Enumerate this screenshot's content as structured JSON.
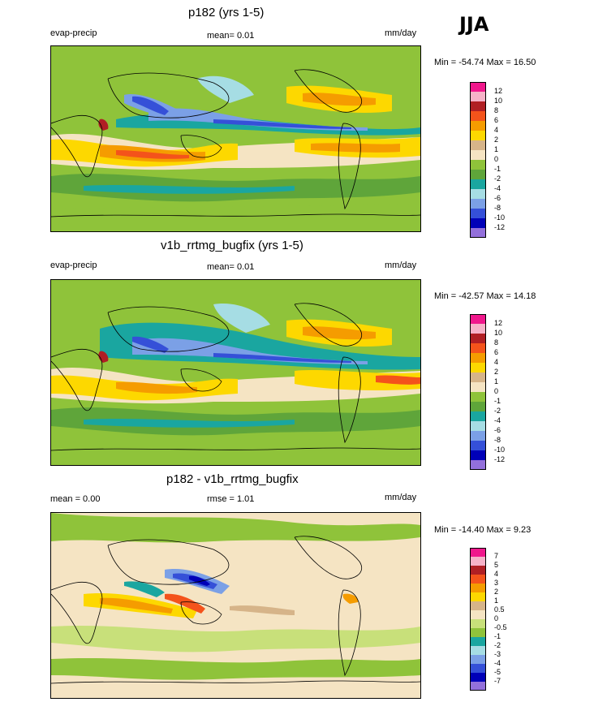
{
  "season": "JJA",
  "panels": [
    {
      "title": "p182 (yrs 1-5)",
      "left_label": "evap-precip",
      "center_label": "mean=   0.01",
      "units": "mm/day",
      "minmax": "Min = -54.74 Max =  16.50",
      "colorbar": {
        "labels": [
          "12",
          "10",
          "8",
          "6",
          "4",
          "2",
          "1",
          "0",
          "-1",
          "-2",
          "-4",
          "-6",
          "-8",
          "-10",
          "-12"
        ],
        "colors": [
          "#f0178c",
          "#f6b2c8",
          "#b01f24",
          "#f4531b",
          "#f59c00",
          "#fdd800",
          "#d6b489",
          "#f5e4c3",
          "#8fc33a",
          "#5fa53a",
          "#1aa6a0",
          "#a6dde4",
          "#7ba0e6",
          "#3550d8",
          "#0000b8",
          "#9370db"
        ]
      }
    },
    {
      "title": "v1b_rrtmg_bugfix (yrs 1-5)",
      "left_label": "evap-precip",
      "center_label": "mean=   0.01",
      "units": "mm/day",
      "minmax": "Min = -42.57 Max =  14.18",
      "colorbar": {
        "labels": [
          "12",
          "10",
          "8",
          "6",
          "4",
          "2",
          "1",
          "0",
          "-1",
          "-2",
          "-4",
          "-6",
          "-8",
          "-10",
          "-12"
        ],
        "colors": [
          "#f0178c",
          "#f6b2c8",
          "#b01f24",
          "#f4531b",
          "#f59c00",
          "#fdd800",
          "#d6b489",
          "#f5e4c3",
          "#8fc33a",
          "#5fa53a",
          "#1aa6a0",
          "#a6dde4",
          "#7ba0e6",
          "#3550d8",
          "#0000b8",
          "#9370db"
        ]
      }
    },
    {
      "title": "p182 - v1b_rrtmg_bugfix",
      "left_label": "mean =   0.00",
      "center_label": "rmse =   1.01",
      "units": "mm/day",
      "minmax": "Min = -14.40 Max =   9.23",
      "colorbar": {
        "labels": [
          "7",
          "5",
          "4",
          "3",
          "2",
          "1",
          "0.5",
          "0",
          "-0.5",
          "-1",
          "-2",
          "-3",
          "-4",
          "-5",
          "-7"
        ],
        "colors": [
          "#f0178c",
          "#f6b2c8",
          "#b01f24",
          "#f4531b",
          "#f59c00",
          "#fdd800",
          "#d6b489",
          "#f5e4c3",
          "#c8e07a",
          "#8fc33a",
          "#1aa6a0",
          "#a6dde4",
          "#7ba0e6",
          "#3550d8",
          "#0000b8",
          "#9370db"
        ]
      }
    }
  ]
}
